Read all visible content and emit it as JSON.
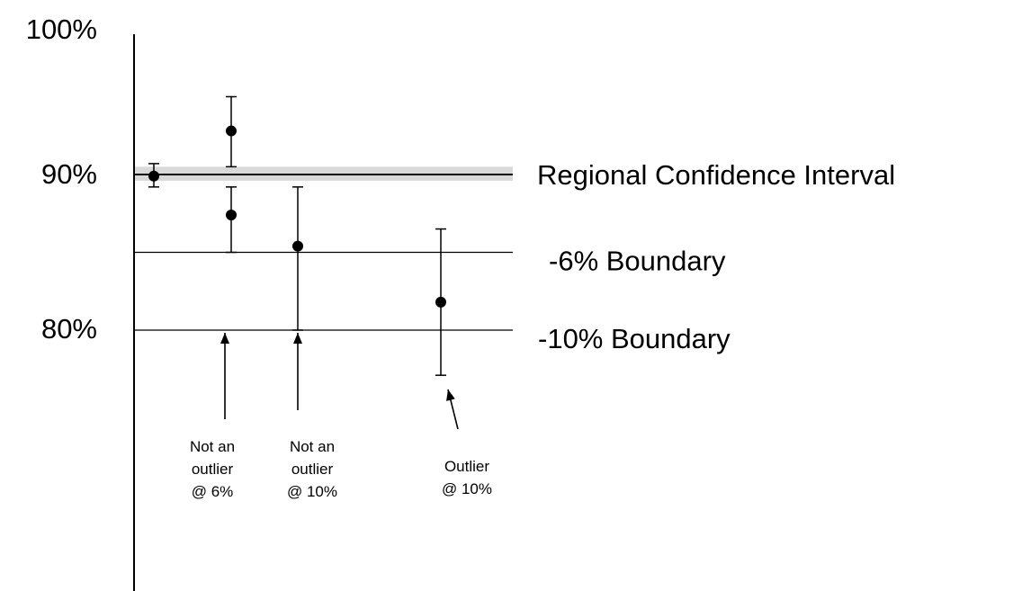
{
  "chart_data": {
    "type": "scatter",
    "title": "",
    "xlabel": "",
    "ylabel": "",
    "ylim": [
      74,
      100
    ],
    "y_ticks": [
      {
        "value": 100,
        "label": "100%"
      },
      {
        "value": 90,
        "label": "90%"
      },
      {
        "value": 80,
        "label": "80%"
      }
    ],
    "x_ticks_shown": false,
    "grid": false,
    "confidence_band": {
      "low": 89.6,
      "high": 90.5,
      "center": 90,
      "color": "#d9d9d9"
    },
    "reference_lines": [
      {
        "value": 90,
        "label": "Regional Confidence Interval"
      },
      {
        "value": 85,
        "label": "-6% Boundary"
      },
      {
        "value": 80,
        "label": "-10% Boundary"
      }
    ],
    "points": [
      {
        "x": 1,
        "y": 89.9,
        "err_low": 89.2,
        "err_high": 90.7
      },
      {
        "x": 2,
        "y": 92.8,
        "err_low": 90.5,
        "err_high": 95.0
      },
      {
        "x": 2,
        "y": 87.4,
        "err_low": 85.0,
        "err_high": 89.2
      },
      {
        "x": 3,
        "y": 85.4,
        "err_low": 80.0,
        "err_high": 89.2
      },
      {
        "x": 4,
        "y": 81.8,
        "err_low": 77.1,
        "err_high": 86.5
      }
    ],
    "annotations": [
      {
        "lines": [
          "Not an",
          "outlier",
          "@ 6%"
        ],
        "target_x": 2,
        "target_y": 80
      },
      {
        "lines": [
          "Not an",
          "outlier",
          "@ 10%"
        ],
        "target_x": 3,
        "target_y": 80
      },
      {
        "lines": [
          "Outlier",
          "@ 10%"
        ],
        "target_x": 4,
        "target_y": 77.1
      }
    ],
    "colors": {
      "axis": "#000000",
      "point": "#000000",
      "line": "#000000",
      "band": "#d9d9d9"
    }
  }
}
